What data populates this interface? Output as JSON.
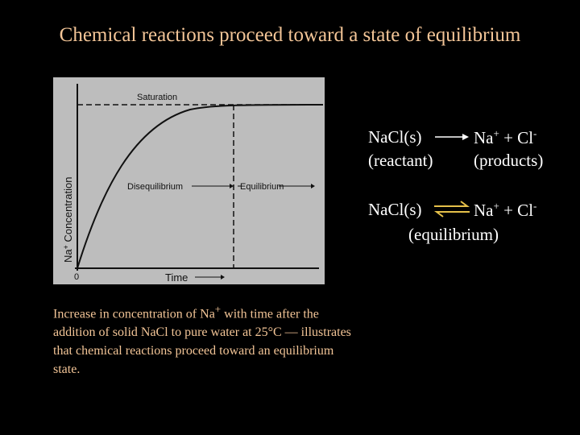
{
  "title": "Chemical reactions proceed toward a state of equilibrium",
  "figure": {
    "saturation": "Saturation",
    "disequilibrium": "Disequilibrium",
    "equilibrium": "Equilibrium",
    "y_label_na": "Na",
    "y_label_sup": "+",
    "y_label_rest": " Concentration",
    "x_label": "Time",
    "origin": "0"
  },
  "caption": {
    "before": "Increase in concentration of Na",
    "sup": "+",
    "after": " with time after the addition of solid NaCl to pure water at 25°C — illustrates that chemical reactions proceed toward an equilibrium state."
  },
  "reaction": {
    "reactant": "NaCl(s)",
    "product_na": "Na",
    "product_na_sup": "+",
    "product_cl": " + Cl",
    "product_cl_sup": "-",
    "reactant_label": "(reactant)",
    "products_label": "(products)"
  },
  "equilibrium": {
    "reactant": "NaCl(s)",
    "product_na": "Na",
    "product_na_sup": "+",
    "product_cl": " + Cl",
    "product_cl_sup": "-",
    "label": "(equilibrium)"
  }
}
